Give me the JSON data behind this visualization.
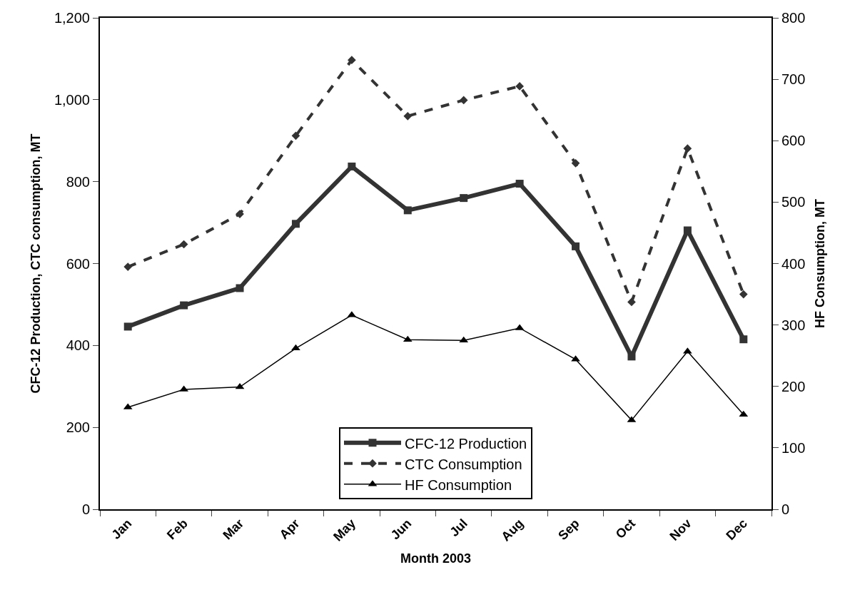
{
  "chart_data": {
    "type": "line",
    "xlabel": "Month 2003",
    "ylabel": "CFC-12 Production, CTC consumption, MT",
    "y2label": "HF Consumption, MT",
    "categories": [
      "Jan",
      "Feb",
      "Mar",
      "Apr",
      "May",
      "Jun",
      "Jul",
      "Aug",
      "Sep",
      "Oct",
      "Nov",
      "Dec"
    ],
    "series": [
      {
        "name": "CFC-12 Production",
        "color": "#333333",
        "marker": "square",
        "line_style": "solid",
        "values": [
          446,
          498,
          540,
          697,
          837,
          730,
          760,
          795,
          642,
          373,
          681,
          415
        ]
      },
      {
        "name": "CTC Consumption",
        "color": "#333333",
        "marker": "diamond",
        "line_style": "dashed",
        "values": [
          592,
          647,
          721,
          912,
          1097,
          960,
          999,
          1033,
          845,
          506,
          881,
          525
        ]
      },
      {
        "name": "HF Consumption",
        "color": "#000000",
        "marker": "triangle",
        "line_style": "solid",
        "axis": "y2",
        "values": [
          166,
          195,
          199,
          262,
          316,
          276,
          275,
          295,
          244,
          145,
          257,
          154
        ]
      }
    ],
    "ylim": [
      0,
      1200
    ],
    "yticks": [
      0,
      200,
      400,
      600,
      800,
      {
        "value": 1000,
        "label": "1,000"
      },
      {
        "value": 1200,
        "label": "1,200"
      }
    ],
    "y2lim": [
      0,
      800
    ],
    "y2ticks": [
      0,
      100,
      200,
      300,
      400,
      500,
      600,
      700,
      800
    ],
    "legend": "bottom"
  }
}
